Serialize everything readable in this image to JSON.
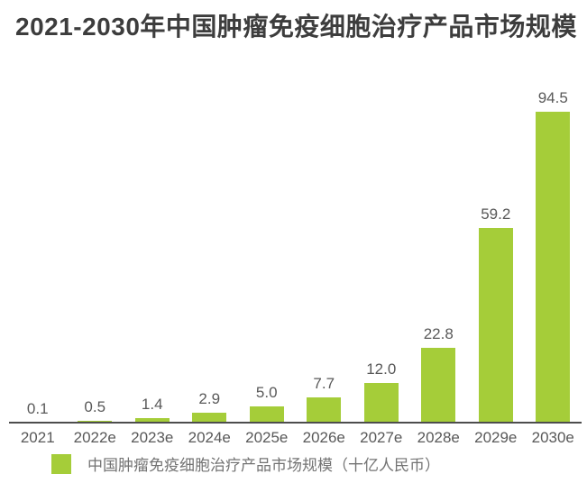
{
  "title": "2021-2030年中国肿瘤免疫细胞治疗产品市场规模",
  "colors": {
    "bar": "#a5cd39",
    "title_text": "#3d3d3d",
    "value_label_text": "#595959",
    "axis_label_text": "#595959",
    "axis_line": "#4d4d4d",
    "legend_text": "#737373",
    "background": "#ffffff"
  },
  "chart_data": {
    "type": "bar",
    "title": "2021-2030年中国肿瘤免疫细胞治疗产品市场规模",
    "categories": [
      "2021",
      "2022e",
      "2023e",
      "2024e",
      "2025e",
      "2026e",
      "2027e",
      "2028e",
      "2029e",
      "2030e"
    ],
    "values": [
      0.1,
      0.5,
      1.4,
      2.9,
      5.0,
      7.7,
      12.0,
      22.8,
      59.2,
      94.5
    ],
    "value_labels": [
      "0.1",
      "0.5",
      "1.4",
      "2.9",
      "5.0",
      "7.7",
      "12.0",
      "22.8",
      "59.2",
      "94.5"
    ],
    "series_name": "中国肿瘤免疫细胞治疗产品市场规模（十亿人民币）",
    "xlabel": "",
    "ylabel": "",
    "ylim": [
      0,
      100
    ],
    "grid": false,
    "y_axis_visible": false,
    "legend_position": "bottom",
    "bar_color": "#a5cd39"
  },
  "legend": {
    "label": "中国肿瘤免疫细胞治疗产品市场规模（十亿人民币）",
    "swatch_color": "#a5cd39"
  }
}
